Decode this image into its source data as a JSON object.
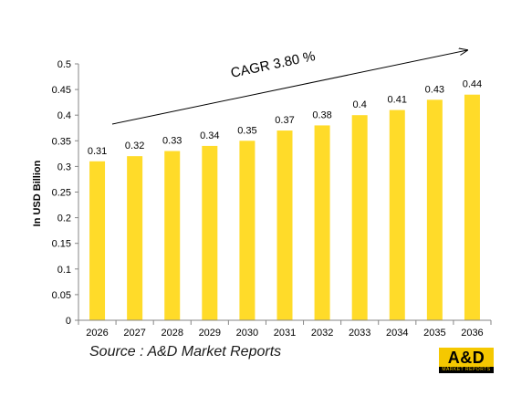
{
  "chart_data": {
    "type": "bar",
    "categories": [
      "2026",
      "2027",
      "2028",
      "2029",
      "2030",
      "2031",
      "2032",
      "2033",
      "2034",
      "2035",
      "2036"
    ],
    "values": [
      0.31,
      0.32,
      0.33,
      0.34,
      0.35,
      0.37,
      0.38,
      0.4,
      0.41,
      0.43,
      0.44
    ],
    "data_labels": [
      "0.31",
      "0.32",
      "0.33",
      "0.34",
      "0.35",
      "0.37",
      "0.38",
      "0.4",
      "0.41",
      "0.43",
      "0.44"
    ],
    "ylabel": "In USD Billion",
    "ylim": [
      0,
      0.5
    ],
    "yticks": [
      "0",
      "0.05",
      "0.1",
      "0.15",
      "0.2",
      "0.25",
      "0.3",
      "0.35",
      "0.4",
      "0.45",
      "0.5"
    ],
    "grid": false,
    "bar_color": "#FFDB29",
    "annotation": "CAGR  3.80 %"
  },
  "source": "Source : A&D Market Reports",
  "logo": {
    "text": "A&D",
    "subtext": "MARKET REPORTS"
  }
}
